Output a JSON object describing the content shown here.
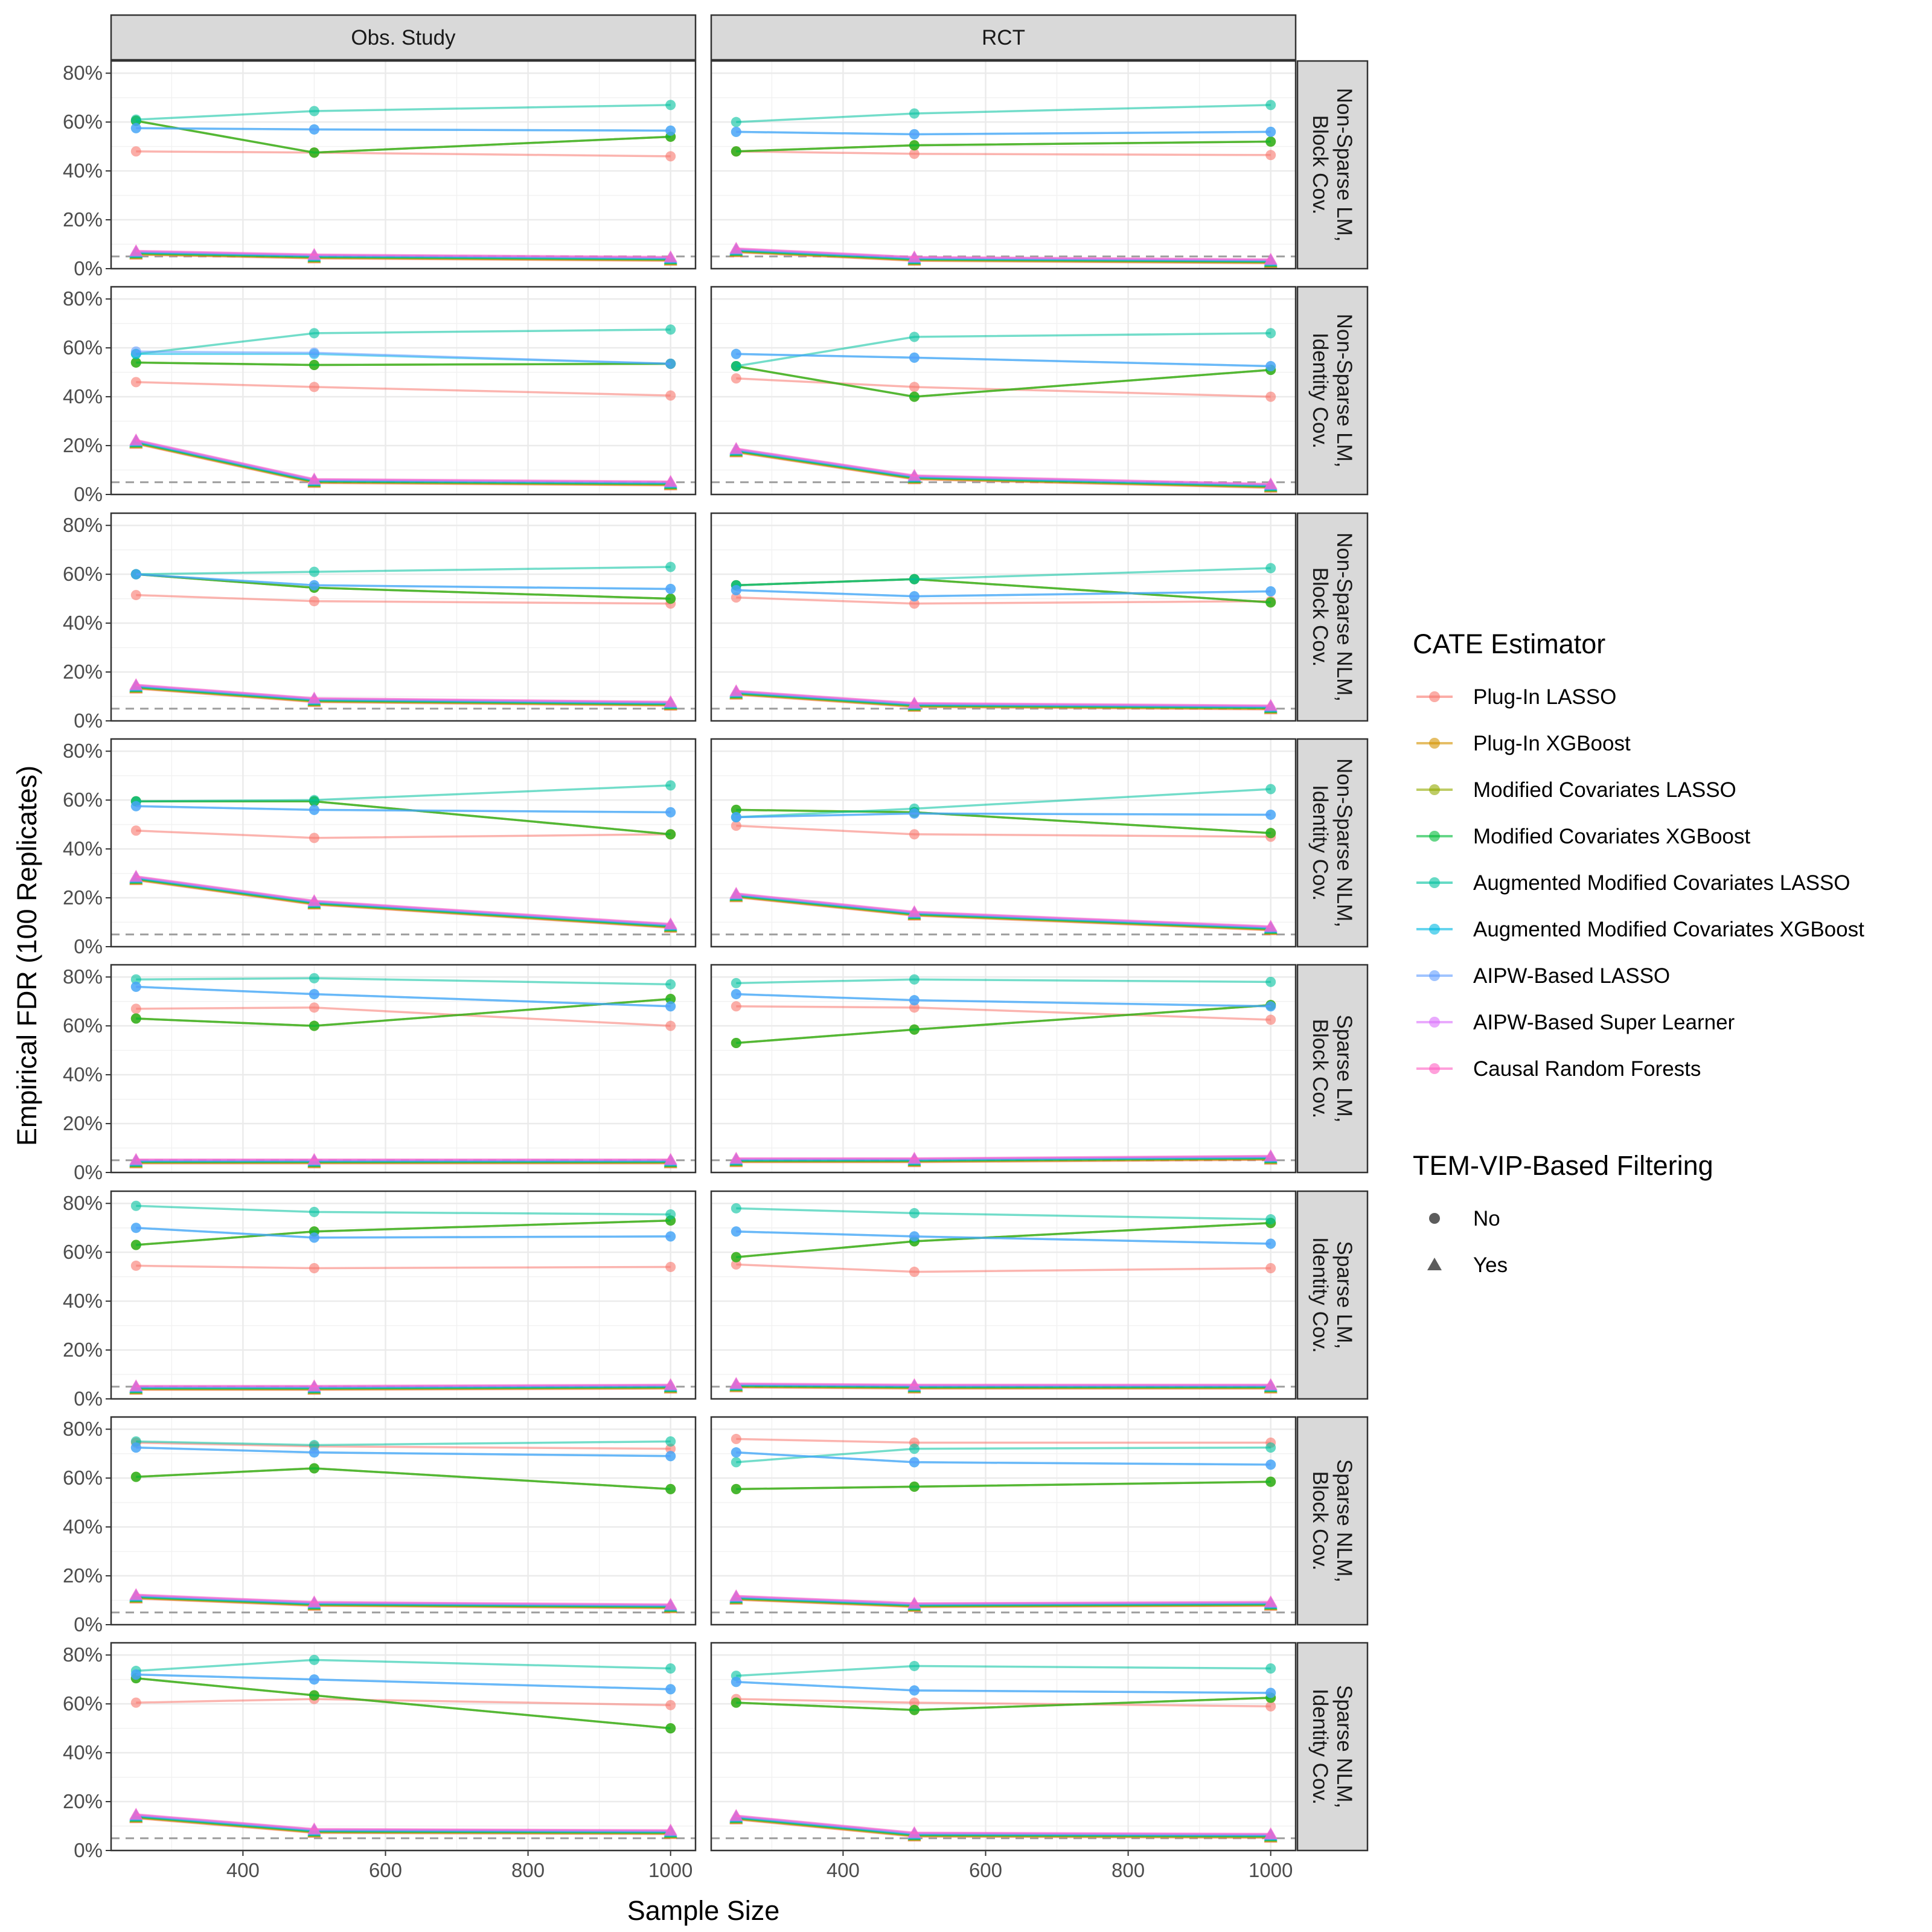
{
  "chart_data": {
    "type": "line",
    "xlabel": "Sample Size",
    "ylabel": "Empirical FDR (100 Replicates)",
    "x": [
      250,
      500,
      1000
    ],
    "xlim": [
      215,
      1035
    ],
    "ylim": [
      0,
      0.85
    ],
    "x_ticks": [
      400,
      600,
      800,
      1000
    ],
    "x_tick_labels": [
      "400",
      "600",
      "800",
      "1000"
    ],
    "y_ticks": [
      0,
      0.2,
      0.4,
      0.6,
      0.8
    ],
    "y_tick_labels": [
      "0%",
      "20%",
      "40%",
      "60%",
      "80%"
    ],
    "reference_line": 0.05,
    "grid": true,
    "legend_position": "right",
    "columns": [
      "Obs. Study",
      "RCT"
    ],
    "rows": [
      [
        "Non-Sparse LM,",
        "Block Cov."
      ],
      [
        "Non-Sparse LM,",
        "Identity Cov."
      ],
      [
        "Non-Sparse NLM,",
        "Block Cov."
      ],
      [
        "Non-Sparse NLM,",
        "Identity Cov."
      ],
      [
        "Sparse LM,",
        "Block Cov."
      ],
      [
        "Sparse LM,",
        "Identity Cov."
      ],
      [
        "Sparse NLM,",
        "Block Cov."
      ],
      [
        "Sparse NLM,",
        "Identity Cov."
      ]
    ],
    "legend_color_title": "CATE Estimator",
    "estimators": [
      {
        "name": "Plug-In LASSO",
        "color": "#F8766D"
      },
      {
        "name": "Plug-In XGBoost",
        "color": "#D39200"
      },
      {
        "name": "Modified Covariates LASSO",
        "color": "#93AA00"
      },
      {
        "name": "Modified Covariates XGBoost",
        "color": "#00BA38"
      },
      {
        "name": "Augmented Modified Covariates LASSO",
        "color": "#00C19F"
      },
      {
        "name": "Augmented Modified Covariates XGBoost",
        "color": "#00B9E3"
      },
      {
        "name": "AIPW-Based LASSO",
        "color": "#619CFF"
      },
      {
        "name": "AIPW-Based Super Learner",
        "color": "#DB72FB"
      },
      {
        "name": "Causal Random Forests",
        "color": "#FF61C3"
      }
    ],
    "legend_shape_title": "TEM-VIP-Based Filtering",
    "filter_levels": [
      {
        "label": "No",
        "shape": "circle"
      },
      {
        "label": "Yes",
        "shape": "triangle"
      }
    ],
    "panels": [
      [
        {
          "no": [
            [
              0.48,
              0.475,
              0.46
            ],
            [
              0.605,
              0.475,
              0.54
            ],
            [
              0.605,
              0.475,
              0.54
            ],
            [
              0.605,
              0.475,
              0.54
            ],
            [
              0.61,
              0.645,
              0.67
            ],
            [
              0.575,
              0.57,
              0.565
            ],
            [
              0.575,
              0.57,
              0.565
            ]
          ],
          "yes": [
            0.065,
            0.05,
            0.04
          ]
        },
        {
          "no": [
            [
              0.48,
              0.47,
              0.465
            ],
            [
              0.48,
              0.505,
              0.52
            ],
            [
              0.48,
              0.505,
              0.52
            ],
            [
              0.48,
              0.505,
              0.52
            ],
            [
              0.6,
              0.635,
              0.67
            ],
            [
              0.56,
              0.55,
              0.56
            ],
            [
              0.56,
              0.55,
              0.56
            ]
          ],
          "yes": [
            0.075,
            0.04,
            0.03
          ]
        }
      ],
      [
        {
          "no": [
            [
              0.46,
              0.44,
              0.405
            ],
            [
              0.54,
              0.53,
              0.535
            ],
            [
              0.54,
              0.53,
              0.535
            ],
            [
              0.54,
              0.53,
              0.535
            ],
            [
              0.575,
              0.66,
              0.675
            ],
            [
              0.575,
              0.575,
              0.535
            ],
            [
              0.585,
              0.58,
              0.535
            ]
          ],
          "yes": [
            0.215,
            0.055,
            0.045
          ]
        },
        {
          "no": [
            [
              0.475,
              0.44,
              0.4
            ],
            [
              0.525,
              0.4,
              0.51
            ],
            [
              0.525,
              0.4,
              0.51
            ],
            [
              0.525,
              0.4,
              0.51
            ],
            [
              0.525,
              0.645,
              0.66
            ],
            [
              0.575,
              0.56,
              0.525
            ],
            [
              0.575,
              0.56,
              0.525
            ]
          ],
          "yes": [
            0.18,
            0.07,
            0.035
          ]
        }
      ],
      [
        {
          "no": [
            [
              0.515,
              0.49,
              0.48
            ],
            [
              0.6,
              0.545,
              0.5
            ],
            [
              0.6,
              0.545,
              0.5
            ],
            [
              0.6,
              0.545,
              0.5
            ],
            [
              0.6,
              0.61,
              0.63
            ],
            [
              0.6,
              0.555,
              0.54
            ],
            [
              0.6,
              0.555,
              0.54
            ]
          ],
          "yes": [
            0.14,
            0.085,
            0.07
          ]
        },
        {
          "no": [
            [
              0.505,
              0.48,
              0.49
            ],
            [
              0.555,
              0.58,
              0.485
            ],
            [
              0.555,
              0.58,
              0.485
            ],
            [
              0.555,
              0.58,
              0.485
            ],
            [
              0.555,
              0.58,
              0.625
            ],
            [
              0.535,
              0.51,
              0.53
            ],
            [
              0.535,
              0.51,
              0.53
            ]
          ],
          "yes": [
            0.115,
            0.065,
            0.055
          ]
        }
      ],
      [
        {
          "no": [
            [
              0.475,
              0.445,
              0.46
            ],
            [
              0.595,
              0.595,
              0.46
            ],
            [
              0.595,
              0.595,
              0.46
            ],
            [
              0.595,
              0.595,
              0.46
            ],
            [
              0.595,
              0.6,
              0.66
            ],
            [
              0.575,
              0.56,
              0.55
            ],
            [
              0.575,
              0.56,
              0.55
            ]
          ],
          "yes": [
            0.28,
            0.18,
            0.085
          ]
        },
        {
          "no": [
            [
              0.495,
              0.46,
              0.45
            ],
            [
              0.56,
              0.55,
              0.465
            ],
            [
              0.56,
              0.55,
              0.465
            ],
            [
              0.56,
              0.55,
              0.465
            ],
            [
              0.53,
              0.565,
              0.645
            ],
            [
              0.53,
              0.545,
              0.54
            ],
            [
              0.53,
              0.545,
              0.54
            ]
          ],
          "yes": [
            0.21,
            0.135,
            0.075
          ]
        }
      ],
      [
        {
          "no": [
            [
              0.67,
              0.675,
              0.6
            ],
            [
              0.63,
              0.6,
              0.71
            ],
            [
              0.63,
              0.6,
              0.71
            ],
            [
              0.63,
              0.6,
              0.71
            ],
            [
              0.79,
              0.795,
              0.77
            ],
            [
              0.76,
              0.73,
              0.68
            ],
            [
              0.76,
              0.73,
              0.68
            ]
          ],
          "yes": [
            0.045,
            0.045,
            0.045
          ]
        },
        {
          "no": [
            [
              0.68,
              0.675,
              0.625
            ],
            [
              0.53,
              0.585,
              0.685
            ],
            [
              0.53,
              0.585,
              0.685
            ],
            [
              0.53,
              0.585,
              0.685
            ],
            [
              0.775,
              0.79,
              0.78
            ],
            [
              0.73,
              0.705,
              0.68
            ],
            [
              0.73,
              0.705,
              0.68
            ]
          ],
          "yes": [
            0.05,
            0.05,
            0.06
          ]
        }
      ],
      [
        {
          "no": [
            [
              0.545,
              0.535,
              0.54
            ],
            [
              0.63,
              0.685,
              0.73
            ],
            [
              0.63,
              0.685,
              0.73
            ],
            [
              0.63,
              0.685,
              0.73
            ],
            [
              0.79,
              0.765,
              0.755
            ],
            [
              0.7,
              0.66,
              0.665
            ],
            [
              0.7,
              0.66,
              0.665
            ]
          ],
          "yes": [
            0.045,
            0.045,
            0.05
          ]
        },
        {
          "no": [
            [
              0.55,
              0.52,
              0.535
            ],
            [
              0.58,
              0.645,
              0.72
            ],
            [
              0.58,
              0.645,
              0.72
            ],
            [
              0.58,
              0.645,
              0.72
            ],
            [
              0.78,
              0.76,
              0.735
            ],
            [
              0.685,
              0.665,
              0.635
            ],
            [
              0.685,
              0.665,
              0.635
            ]
          ],
          "yes": [
            0.055,
            0.05,
            0.05
          ]
        }
      ],
      [
        {
          "no": [
            [
              0.745,
              0.73,
              0.72
            ],
            [
              0.605,
              0.64,
              0.555
            ],
            [
              0.605,
              0.64,
              0.555
            ],
            [
              0.605,
              0.64,
              0.555
            ],
            [
              0.75,
              0.735,
              0.75
            ],
            [
              0.725,
              0.705,
              0.69
            ],
            [
              0.725,
              0.705,
              0.69
            ]
          ],
          "yes": [
            0.115,
            0.085,
            0.075
          ]
        },
        {
          "no": [
            [
              0.76,
              0.745,
              0.745
            ],
            [
              0.555,
              0.565,
              0.585
            ],
            [
              0.555,
              0.565,
              0.585
            ],
            [
              0.555,
              0.565,
              0.585
            ],
            [
              0.665,
              0.72,
              0.725
            ],
            [
              0.705,
              0.665,
              0.655
            ],
            [
              0.705,
              0.665,
              0.655
            ]
          ],
          "yes": [
            0.11,
            0.08,
            0.085
          ]
        }
      ],
      [
        {
          "no": [
            [
              0.605,
              0.62,
              0.595
            ],
            [
              0.705,
              0.635,
              0.5
            ],
            [
              0.705,
              0.635,
              0.5
            ],
            [
              0.705,
              0.635,
              0.5
            ],
            [
              0.735,
              0.78,
              0.745
            ],
            [
              0.72,
              0.7,
              0.66
            ],
            [
              0.72,
              0.7,
              0.66
            ]
          ],
          "yes": [
            0.14,
            0.08,
            0.075
          ]
        },
        {
          "no": [
            [
              0.62,
              0.605,
              0.59
            ],
            [
              0.605,
              0.575,
              0.625
            ],
            [
              0.605,
              0.575,
              0.625
            ],
            [
              0.605,
              0.575,
              0.625
            ],
            [
              0.715,
              0.755,
              0.745
            ],
            [
              0.69,
              0.655,
              0.645
            ],
            [
              0.69,
              0.655,
              0.645
            ]
          ],
          "yes": [
            0.135,
            0.065,
            0.06
          ]
        }
      ]
    ]
  }
}
